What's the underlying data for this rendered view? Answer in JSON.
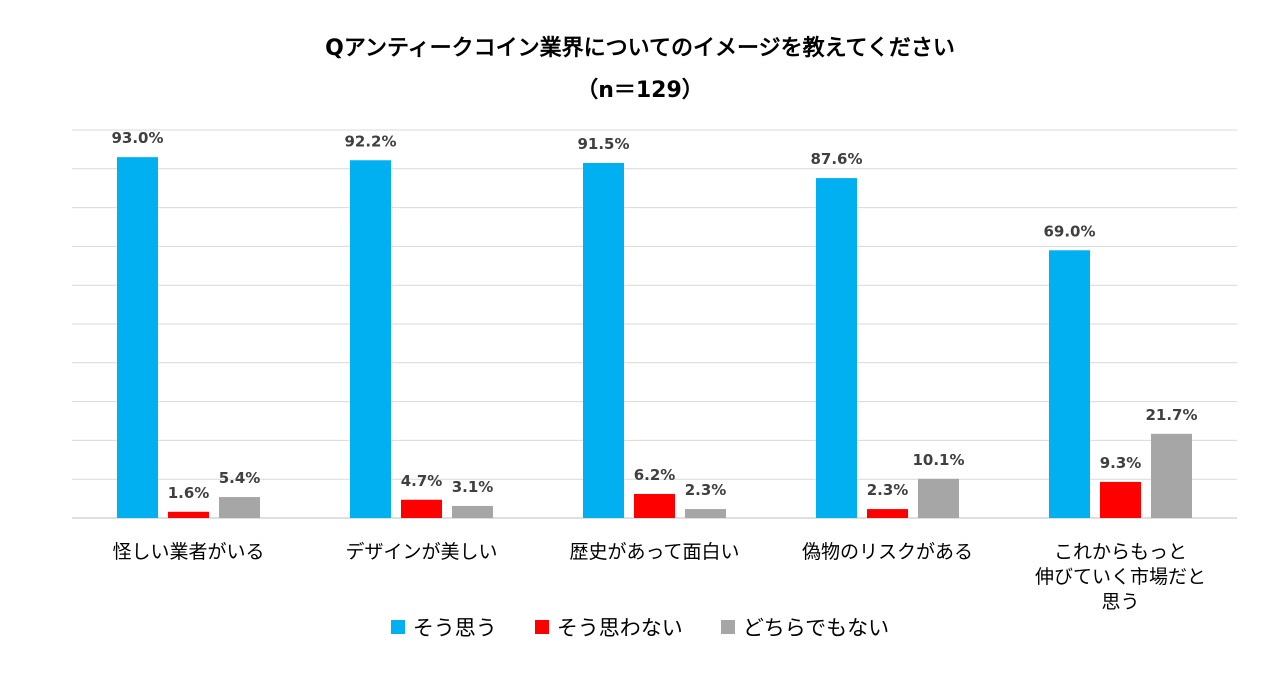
{
  "chart_data": {
    "type": "bar",
    "title": "Qアンティークコイン業界についてのイメージを教えてください",
    "subtitle": "（n＝129）",
    "categories": [
      [
        "怪しい業者がいる"
      ],
      [
        "デザインが美しい"
      ],
      [
        "歴史があって面白い"
      ],
      [
        "偽物のリスクがある"
      ],
      [
        "これからもっと",
        "伸びていく市場だと",
        "思う"
      ]
    ],
    "series": [
      {
        "name": "そう思う",
        "color": "#00B0F0",
        "values": [
          93.0,
          92.2,
          91.5,
          87.6,
          69.0
        ],
        "labels": [
          "93.0%",
          "92.2%",
          "91.5%",
          "87.6%",
          "69.0%"
        ]
      },
      {
        "name": "そう思わない",
        "color": "#FF0000",
        "values": [
          1.6,
          4.7,
          6.2,
          2.3,
          9.3
        ],
        "labels": [
          "1.6%",
          "4.7%",
          "6.2%",
          "2.3%",
          "9.3%"
        ]
      },
      {
        "name": "どちらでもない",
        "color": "#A6A6A6",
        "values": [
          5.4,
          3.1,
          2.3,
          10.1,
          21.7
        ],
        "labels": [
          "5.4%",
          "3.1%",
          "2.3%",
          "10.1%",
          "21.7%"
        ]
      }
    ],
    "ylim": [
      0,
      100
    ],
    "grid": true,
    "legend_position": "bottom",
    "xlabel": "",
    "ylabel": ""
  }
}
